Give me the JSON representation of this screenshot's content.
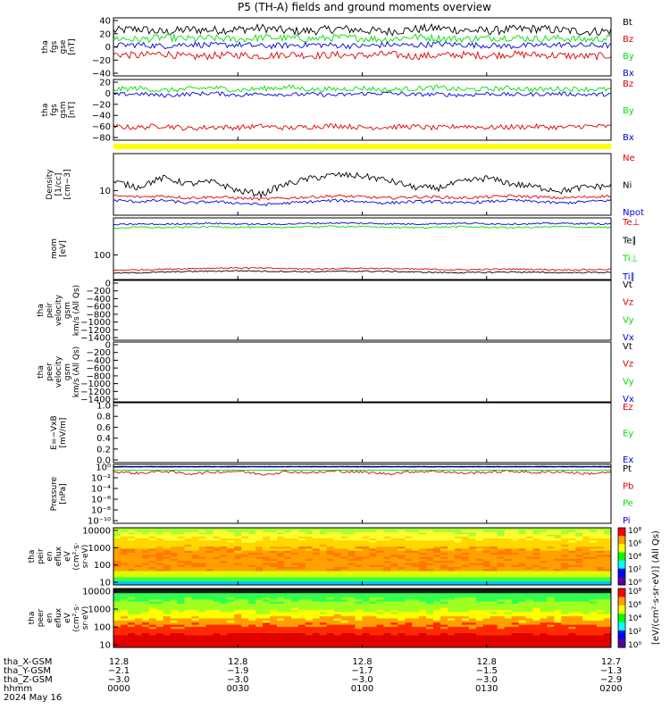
{
  "title": "P5 (TH-A) fields and ground moments overview",
  "colors": {
    "black": "#000000",
    "red": "#e00000",
    "green": "#00e000",
    "blue": "#0000e0",
    "yellow": "#ffff00"
  },
  "chart_data": [
    {
      "type": "line",
      "id": "fgs_gse",
      "ylabel_lines": [
        "tha",
        "fgs",
        "gse",
        "[nT]"
      ],
      "yticks": [
        "40",
        "20",
        "0",
        "−20",
        "−40"
      ],
      "ylim": [
        -40,
        40
      ],
      "series": [
        {
          "name": "Bt",
          "color": "#000000",
          "values": [
            22,
            25,
            20,
            24,
            23,
            24,
            26,
            22,
            22,
            25,
            23,
            21,
            24,
            26,
            23,
            22,
            24,
            25,
            23,
            21,
            22
          ]
        },
        {
          "name": "Bz",
          "color": "#e00000",
          "values": [
            -10,
            -12,
            -9,
            -14,
            -12,
            -11,
            -13,
            -10,
            -12,
            -11,
            -12,
            -10,
            -13,
            -12,
            -11,
            -12,
            -10,
            -11,
            -12,
            -13,
            -12
          ]
        },
        {
          "name": "By",
          "color": "#00e000",
          "values": [
            12,
            10,
            13,
            11,
            12,
            10,
            13,
            12,
            11,
            13,
            12,
            10,
            14,
            12,
            11,
            12,
            13,
            11,
            12,
            10,
            12
          ]
        },
        {
          "name": "Bx",
          "color": "#0000e0",
          "values": [
            2,
            3,
            1,
            4,
            2,
            3,
            1,
            2,
            3,
            2,
            1,
            3,
            2,
            4,
            3,
            2,
            1,
            2,
            3,
            2,
            2
          ]
        }
      ]
    },
    {
      "type": "line",
      "id": "fgs_gsm",
      "ylabel_lines": [
        "tha",
        "fgs",
        "gsm",
        "[nT]"
      ],
      "yticks": [
        "20",
        "0",
        "−20",
        "−40",
        "−60",
        "−80"
      ],
      "ylim": [
        -95,
        25
      ],
      "series": [
        {
          "name": "Bz",
          "color": "#e00000",
          "values": [
            -68,
            -70,
            -66,
            -72,
            -69,
            -70,
            -67,
            -71,
            -68,
            -66,
            -70,
            -69,
            -68,
            -71,
            -67,
            -70,
            -69,
            -68,
            -70,
            -67,
            -68
          ]
        },
        {
          "name": "By",
          "color": "#00e000",
          "values": [
            5,
            8,
            3,
            6,
            9,
            4,
            7,
            10,
            5,
            6,
            8,
            4,
            7,
            9,
            5,
            6,
            8,
            5,
            7,
            6,
            5
          ]
        },
        {
          "name": "Bx",
          "color": "#0000e0",
          "values": [
            -5,
            -3,
            -7,
            -4,
            -2,
            -6,
            -3,
            -5,
            -4,
            -6,
            -3,
            -2,
            -5,
            -4,
            -6,
            -3,
            -5,
            -4,
            -3,
            -5,
            -4
          ]
        }
      ]
    },
    {
      "type": "line",
      "id": "density",
      "log": true,
      "ylabel_lines": [
        "Density",
        "[1/cc]",
        "[cm−3]"
      ],
      "yticks": [
        "10"
      ],
      "ylim": [
        3,
        100
      ],
      "series": [
        {
          "name": "Ne",
          "color": "#e00000",
          "values": [
            9,
            8.5,
            9,
            8,
            8.5,
            8,
            7.5,
            8,
            8.5,
            9,
            8.5,
            8,
            8.5,
            8.5,
            8,
            8.5,
            9,
            8.5,
            8,
            8.5,
            9
          ]
        },
        {
          "name": "Ni",
          "color": "#000000",
          "values": [
            20,
            15,
            25,
            18,
            20,
            12,
            10,
            18,
            25,
            30,
            28,
            22,
            15,
            14,
            20,
            25,
            18,
            15,
            12,
            15,
            16
          ]
        },
        {
          "name": "Npot",
          "color": "#0000e0",
          "values": [
            7,
            6.5,
            7,
            6,
            6.5,
            6,
            5.5,
            6,
            6.5,
            7,
            6.5,
            6,
            6.5,
            6.5,
            6,
            6.5,
            7,
            6.5,
            6,
            6.5,
            7
          ]
        }
      ]
    },
    {
      "type": "line",
      "id": "moms_temp",
      "log": true,
      "ylabel_lines": [
        "mom",
        "[eV]"
      ],
      "yticks": [
        "100"
      ],
      "ylim": [
        30,
        3000
      ],
      "series": [
        {
          "name": "Te⊥",
          "color": "#e00000",
          "values": [
            60,
            62,
            65,
            68,
            70,
            72,
            70,
            68,
            66,
            68,
            70,
            68,
            66,
            64,
            62,
            64,
            66,
            64,
            62,
            63,
            64
          ]
        },
        {
          "name": "Te∥",
          "color": "#000000",
          "values": [
            48,
            50,
            52,
            55,
            56,
            58,
            56,
            55,
            54,
            55,
            56,
            55,
            53,
            51,
            50,
            51,
            53,
            51,
            50,
            51,
            51
          ]
        },
        {
          "name": "Ti⊥",
          "color": "#00e000",
          "values": [
            1400,
            1500,
            1450,
            1500,
            1550,
            1500,
            1450,
            1500,
            1550,
            1600,
            1550,
            1500,
            1450,
            1500,
            1550,
            1500,
            1450,
            1500,
            1550,
            1500,
            1480
          ]
        },
        {
          "name": "Ti∥",
          "color": "#0000e0",
          "values": [
            1800,
            1900,
            1850,
            1950,
            2000,
            1900,
            1850,
            1900,
            2000,
            2050,
            2000,
            1950,
            1900,
            1950,
            2000,
            1950,
            1900,
            1950,
            2000,
            1950,
            1900
          ]
        }
      ]
    },
    {
      "type": "line",
      "id": "peir_velocity",
      "ylabel_lines": [
        "tha",
        "peir",
        "velocity",
        "gsm",
        "km/s (All Qs)"
      ],
      "yticks": [
        "0",
        "−200",
        "−400",
        "−600",
        "−800",
        "−1000",
        "−1200",
        "−1400"
      ],
      "ylim": [
        -1400,
        0
      ],
      "series": [
        {
          "name": "Vt",
          "color": "#000000",
          "values": []
        },
        {
          "name": "Vz",
          "color": "#e00000",
          "values": []
        },
        {
          "name": "Vy",
          "color": "#00e000",
          "values": []
        },
        {
          "name": "Vx",
          "color": "#0000e0",
          "values": []
        }
      ]
    },
    {
      "type": "line",
      "id": "peer_velocity",
      "ylabel_lines": [
        "tha",
        "peer",
        "velocity",
        "gsm",
        "km/s (All Qs)"
      ],
      "yticks": [
        "0",
        "−200",
        "−400",
        "−600",
        "−800",
        "−1000",
        "−1200",
        "−1400"
      ],
      "ylim": [
        -1400,
        0
      ],
      "series": [
        {
          "name": "Vt",
          "color": "#000000",
          "values": []
        },
        {
          "name": "Vz",
          "color": "#e00000",
          "values": []
        },
        {
          "name": "Vy",
          "color": "#00e000",
          "values": []
        },
        {
          "name": "Vx",
          "color": "#0000e0",
          "values": []
        }
      ]
    },
    {
      "type": "line",
      "id": "efield",
      "ylabel_lines": [
        "E=−VxB",
        "[mV/m]"
      ],
      "yticks": [
        "1.0",
        "0.8",
        "0.6",
        "0.4",
        "0.2",
        "0.0"
      ],
      "ylim": [
        0,
        1
      ],
      "series": [
        {
          "name": "Ez",
          "color": "#e00000",
          "values": []
        },
        {
          "name": "Ey",
          "color": "#00e000",
          "values": []
        },
        {
          "name": "Ex",
          "color": "#0000e0",
          "values": []
        }
      ]
    },
    {
      "type": "line",
      "id": "pressure",
      "log": true,
      "ylabel_lines": [
        "Pressure",
        "[nPa]"
      ],
      "yticks": [
        "10⁰",
        "10⁻²",
        "10⁻⁴",
        "10⁻⁶",
        "10⁻⁸",
        "10⁻¹⁰"
      ],
      "ylim": [
        -11,
        0.3
      ],
      "series": [
        {
          "name": "Pt",
          "color": "#000000",
          "values": [
            -0.1,
            -0.1,
            -0.1,
            -0.1,
            -0.1,
            -0.1,
            -0.1,
            -0.1,
            -0.1,
            -0.1,
            -0.1,
            -0.1,
            -0.1,
            -0.1,
            -0.1,
            -0.1,
            -0.1,
            -0.1,
            -0.1,
            -0.1,
            -0.1
          ]
        },
        {
          "name": "Pb",
          "color": "#e00000",
          "values": [
            -1.1,
            -1.4,
            -1,
            -1.5,
            -1.2,
            -1.0,
            -1.6,
            -1.1,
            -1.3,
            -1.0,
            -1.2,
            -1.5,
            -1.1,
            -1.0,
            -1.4,
            -1.2,
            -1.0,
            -1.3,
            -1.1,
            -1.5,
            -1.2
          ]
        },
        {
          "name": "Pe",
          "color": "#00e000",
          "values": [
            -0.8,
            -0.8,
            -0.8,
            -0.8,
            -0.8,
            -0.8,
            -0.8,
            -0.8,
            -0.8,
            -0.8,
            -0.8,
            -0.8,
            -0.8,
            -0.8,
            -0.8,
            -0.8,
            -0.8,
            -0.8,
            -0.8,
            -0.8,
            -0.8
          ]
        },
        {
          "name": "Pi",
          "color": "#0000e0",
          "values": [
            -0.2,
            -0.2,
            -0.2,
            -0.2,
            -0.2,
            -0.2,
            -0.2,
            -0.2,
            -0.2,
            -0.2,
            -0.2,
            -0.2,
            -0.2,
            -0.2,
            -0.2,
            -0.2,
            -0.2,
            -0.2,
            -0.2,
            -0.2,
            -0.2
          ]
        }
      ]
    },
    {
      "type": "heatmap",
      "id": "peir_spec",
      "ylabel_lines": [
        "tha",
        "peir",
        "en",
        "eflux",
        "eV",
        "(cm²·s·",
        "sr·eV)"
      ],
      "yticks": [
        "10000",
        "1000",
        "100",
        "10"
      ],
      "ylim": [
        5,
        25000
      ],
      "colorbar": {
        "label": "[eV/(cm²·s·sr·eV)] (All Qs)",
        "ticks": [
          "10⁸",
          "10⁶",
          "10⁴",
          "10²",
          "10⁰"
        ]
      }
    },
    {
      "type": "heatmap",
      "id": "peer_spec",
      "ylabel_lines": [
        "tha",
        "peer",
        "en",
        "eflux",
        "eV",
        "(cm²·s·",
        "sr·eV)"
      ],
      "yticks": [
        "10000",
        "1000",
        "100",
        "10"
      ],
      "ylim": [
        5,
        25000
      ],
      "colorbar": {
        "label": "[eV/(cm²·s·sr·eV)] (All Qs)",
        "ticks": [
          "10⁸",
          "10⁶",
          "10⁴",
          "10²",
          "10⁰"
        ]
      }
    }
  ],
  "bottom_axis": {
    "row_labels": [
      "tha_X-GSM",
      "tha_Y-GSM",
      "tha_Z-GSM",
      "hhmm",
      "2024 May 16"
    ],
    "columns": [
      {
        "x": "12.8",
        "y": "−2.1",
        "z": "−3.0",
        "t": "0000"
      },
      {
        "x": "12.8",
        "y": "−1.9",
        "z": "−3.0",
        "t": "0030"
      },
      {
        "x": "12.8",
        "y": "−1.7",
        "z": "−3.0",
        "t": "0100"
      },
      {
        "x": "12.8",
        "y": "−1.5",
        "z": "−3.0",
        "t": "0130"
      },
      {
        "x": "12.7",
        "y": "−1.3",
        "z": "−2.9",
        "t": "0200"
      }
    ]
  }
}
